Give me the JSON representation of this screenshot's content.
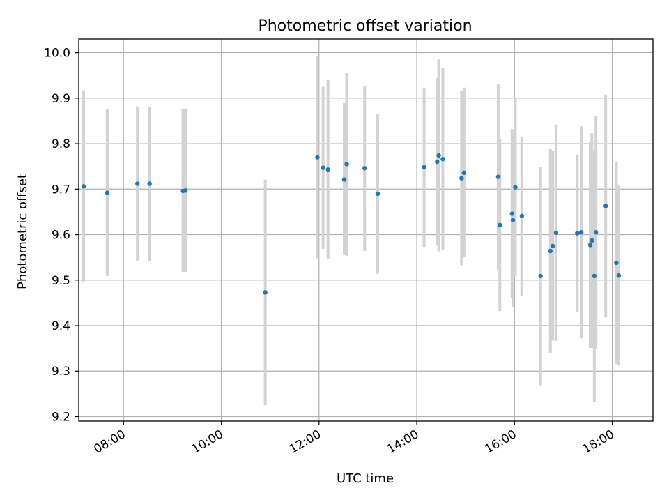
{
  "chart_data": {
    "type": "scatter",
    "title": "Photometric offset variation",
    "xlabel": "UTC time",
    "ylabel": "Photometric offset",
    "x_unit": "UTC time of day",
    "xlim": [
      "07:05",
      "18:50"
    ],
    "ylim": [
      9.19,
      10.03
    ],
    "x_ticks": [
      "08:00",
      "10:00",
      "12:00",
      "14:00",
      "16:00",
      "18:00"
    ],
    "y_ticks": [
      "9.2",
      "9.3",
      "9.4",
      "9.5",
      "9.6",
      "9.7",
      "9.8",
      "9.9",
      "10.0"
    ],
    "grid": true,
    "colors": {
      "point": "#1f77b4",
      "error_bar": "#d3d3d3"
    },
    "points": [
      {
        "x": "07:11",
        "y": 9.706,
        "err_low": 9.497,
        "err_high": 9.917
      },
      {
        "x": "07:40",
        "y": 9.692,
        "err_low": 9.509,
        "err_high": 9.875
      },
      {
        "x": "08:17",
        "y": 9.712,
        "err_low": 9.541,
        "err_high": 9.882
      },
      {
        "x": "08:32",
        "y": 9.712,
        "err_low": 9.542,
        "err_high": 9.88
      },
      {
        "x": "09:13",
        "y": 9.696,
        "err_low": 9.518,
        "err_high": 9.877
      },
      {
        "x": "09:16",
        "y": 9.697,
        "err_low": 9.518,
        "err_high": 9.877
      },
      {
        "x": "10:54",
        "y": 9.473,
        "err_low": 9.225,
        "err_high": 9.721
      },
      {
        "x": "11:58",
        "y": 9.77,
        "err_low": 9.548,
        "err_high": 9.993
      },
      {
        "x": "12:05",
        "y": 9.747,
        "err_low": 9.569,
        "err_high": 9.925
      },
      {
        "x": "12:11",
        "y": 9.743,
        "err_low": 9.546,
        "err_high": 9.94
      },
      {
        "x": "12:31",
        "y": 9.721,
        "err_low": 9.555,
        "err_high": 9.889
      },
      {
        "x": "12:34",
        "y": 9.755,
        "err_low": 9.553,
        "err_high": 9.956
      },
      {
        "x": "12:56",
        "y": 9.746,
        "err_low": 9.564,
        "err_high": 9.926
      },
      {
        "x": "13:12",
        "y": 9.69,
        "err_low": 9.514,
        "err_high": 9.865
      },
      {
        "x": "14:09",
        "y": 9.748,
        "err_low": 9.573,
        "err_high": 9.923
      },
      {
        "x": "14:25",
        "y": 9.76,
        "err_low": 9.576,
        "err_high": 9.944
      },
      {
        "x": "14:27",
        "y": 9.774,
        "err_low": 9.563,
        "err_high": 9.985
      },
      {
        "x": "14:32",
        "y": 9.766,
        "err_low": 9.566,
        "err_high": 9.966
      },
      {
        "x": "14:55",
        "y": 9.724,
        "err_low": 9.533,
        "err_high": 9.915
      },
      {
        "x": "14:58",
        "y": 9.736,
        "err_low": 9.55,
        "err_high": 9.923
      },
      {
        "x": "15:40",
        "y": 9.727,
        "err_low": 9.523,
        "err_high": 9.93
      },
      {
        "x": "15:42",
        "y": 9.621,
        "err_low": 9.432,
        "err_high": 9.812
      },
      {
        "x": "15:57",
        "y": 9.646,
        "err_low": 9.46,
        "err_high": 9.832
      },
      {
        "x": "15:58",
        "y": 9.632,
        "err_low": 9.44,
        "err_high": 9.825
      },
      {
        "x": "16:01",
        "y": 9.704,
        "err_low": 9.508,
        "err_high": 9.9
      },
      {
        "x": "16:09",
        "y": 9.641,
        "err_low": 9.466,
        "err_high": 9.816
      },
      {
        "x": "16:32",
        "y": 9.509,
        "err_low": 9.269,
        "err_high": 9.749
      },
      {
        "x": "16:44",
        "y": 9.564,
        "err_low": 9.339,
        "err_high": 9.788
      },
      {
        "x": "16:47",
        "y": 9.575,
        "err_low": 9.367,
        "err_high": 9.784
      },
      {
        "x": "16:51",
        "y": 9.604,
        "err_low": 9.366,
        "err_high": 9.842
      },
      {
        "x": "17:17",
        "y": 9.603,
        "err_low": 9.43,
        "err_high": 9.776
      },
      {
        "x": "17:22",
        "y": 9.605,
        "err_low": 9.372,
        "err_high": 9.838
      },
      {
        "x": "17:33",
        "y": 9.577,
        "err_low": 9.351,
        "err_high": 9.803
      },
      {
        "x": "17:35",
        "y": 9.587,
        "err_low": 9.351,
        "err_high": 9.823
      },
      {
        "x": "17:38",
        "y": 9.509,
        "err_low": 9.233,
        "err_high": 9.786
      },
      {
        "x": "17:40",
        "y": 9.605,
        "err_low": 9.35,
        "err_high": 9.86
      },
      {
        "x": "17:52",
        "y": 9.663,
        "err_low": 9.418,
        "err_high": 9.908
      },
      {
        "x": "18:05",
        "y": 9.538,
        "err_low": 9.316,
        "err_high": 9.761
      },
      {
        "x": "18:08",
        "y": 9.51,
        "err_low": 9.312,
        "err_high": 9.708
      }
    ]
  }
}
